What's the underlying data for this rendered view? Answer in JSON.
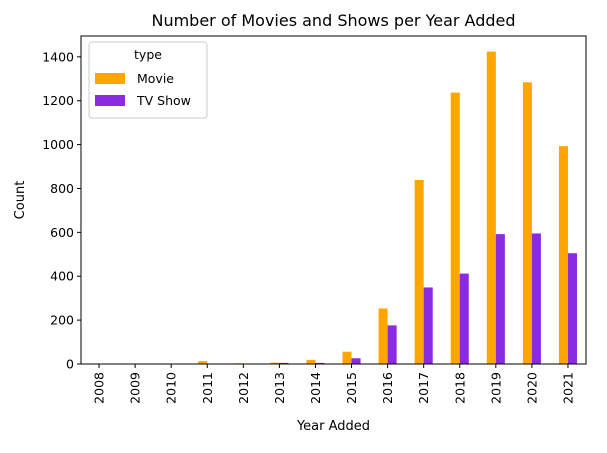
{
  "chart_data": {
    "type": "bar",
    "title": "Number of Movies and Shows per Year Added",
    "xlabel": "Year Added",
    "ylabel": "Count",
    "categories": [
      "2008",
      "2009",
      "2010",
      "2011",
      "2012",
      "2013",
      "2014",
      "2015",
      "2016",
      "2017",
      "2018",
      "2019",
      "2020",
      "2021"
    ],
    "series": [
      {
        "name": "Movie",
        "color": "#FFA500",
        "values": [
          1,
          2,
          1,
          13,
          3,
          6,
          19,
          56,
          253,
          839,
          1237,
          1424,
          1284,
          993
        ]
      },
      {
        "name": "TV Show",
        "color": "#8A2BE2",
        "values": [
          1,
          0,
          0,
          1,
          0,
          5,
          5,
          26,
          176,
          349,
          412,
          592,
          595,
          505
        ]
      }
    ],
    "ylim": [
      0,
      1495
    ],
    "yticks": [
      "0",
      "200",
      "400",
      "600",
      "800",
      "1000",
      "1200",
      "1400"
    ],
    "grid": false,
    "legend": {
      "title": "type",
      "position": "top-left"
    }
  }
}
